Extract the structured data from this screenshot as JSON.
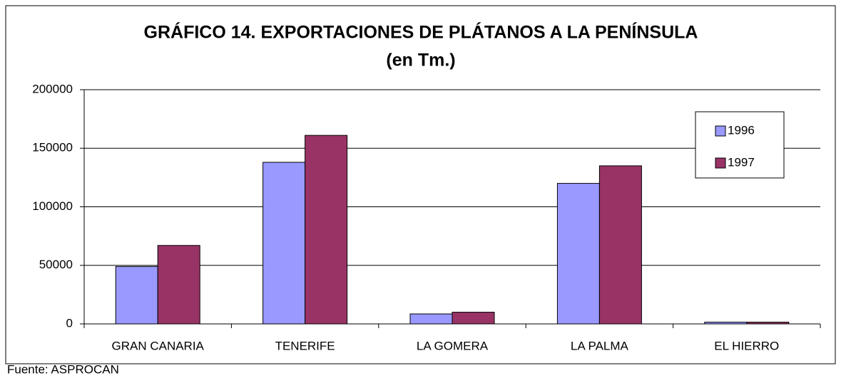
{
  "chart_data": {
    "type": "bar",
    "title": "GRÁFICO 14. EXPORTACIONES DE PLÁTANOS A LA PENÍNSULA",
    "subtitle": "(en Tm.)",
    "categories": [
      "GRAN CANARIA",
      "TENERIFE",
      "LA GOMERA",
      "LA PALMA",
      "EL HIERRO"
    ],
    "series": [
      {
        "name": "1996",
        "color": "#9999ff",
        "values": [
          49000,
          138000,
          8500,
          120000,
          1500
        ]
      },
      {
        "name": "1997",
        "color": "#993366",
        "values": [
          67000,
          161000,
          10000,
          135000,
          1500
        ]
      }
    ],
    "ylim": [
      0,
      200000
    ],
    "yticks": [
      0,
      50000,
      100000,
      150000,
      200000
    ],
    "grid": true,
    "legend": "right",
    "source": "Fuente: ASPROCAN"
  }
}
